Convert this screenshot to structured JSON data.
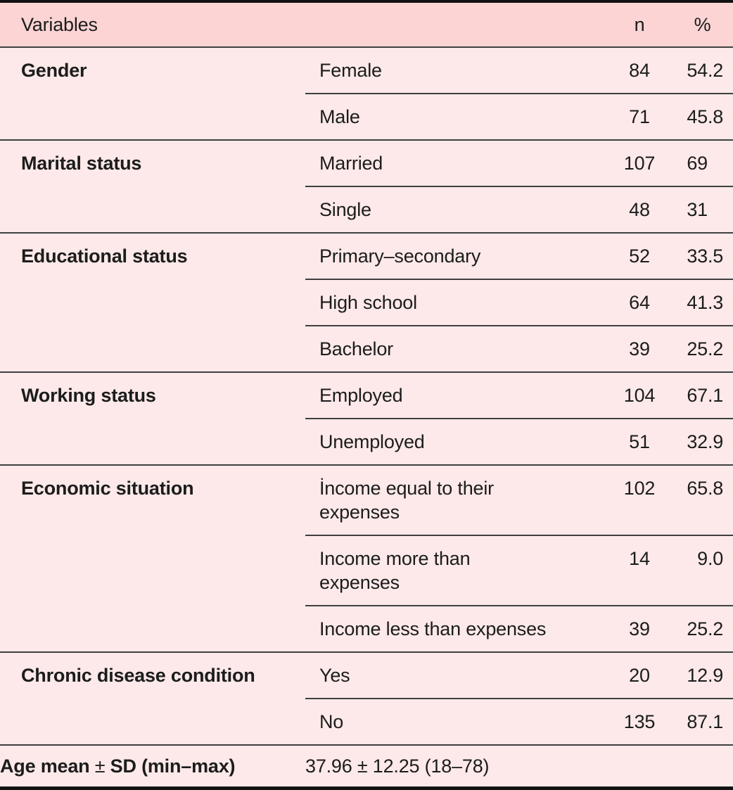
{
  "table": {
    "header": {
      "variables": "Variables",
      "n": "n",
      "percent": "%"
    },
    "groups": [
      {
        "label": "Gender",
        "rows": [
          {
            "category": "Female",
            "n": "84",
            "pct": {
              "int": "54",
              "frac": ".2"
            }
          },
          {
            "category": "Male",
            "n": "71",
            "pct": {
              "int": "45",
              "frac": ".8"
            }
          }
        ]
      },
      {
        "label": "Marital status",
        "rows": [
          {
            "category": "Married",
            "n": "107",
            "pct": {
              "int": "69",
              "frac": ""
            }
          },
          {
            "category": "Single",
            "n": "48",
            "pct": {
              "int": "31",
              "frac": ""
            }
          }
        ]
      },
      {
        "label": "Educational status",
        "rows": [
          {
            "category": "Primary–secondary",
            "n": "52",
            "pct": {
              "int": "33",
              "frac": ".5"
            }
          },
          {
            "category": "High school",
            "n": "64",
            "pct": {
              "int": "41",
              "frac": ".3"
            }
          },
          {
            "category": "Bachelor",
            "n": "39",
            "pct": {
              "int": "25",
              "frac": ".2"
            }
          }
        ]
      },
      {
        "label": "Working status",
        "rows": [
          {
            "category": "Employed",
            "n": "104",
            "pct": {
              "int": "67",
              "frac": ".1"
            }
          },
          {
            "category": "Unemployed",
            "n": "51",
            "pct": {
              "int": "32",
              "frac": ".9"
            }
          }
        ]
      },
      {
        "label": "Economic situation",
        "rows": [
          {
            "category": "İncome equal to their\nexpenses",
            "n": "102",
            "pct": {
              "int": "65",
              "frac": ".8"
            }
          },
          {
            "category": "Income more than\nexpenses",
            "n": "14",
            "pct": {
              "int": "9",
              "frac": ".0"
            }
          },
          {
            "category": "Income less than expenses",
            "n": "39",
            "pct": {
              "int": "25",
              "frac": ".2"
            }
          }
        ]
      },
      {
        "label": "Chronic disease condition",
        "rows": [
          {
            "category": "Yes",
            "n": "20",
            "pct": {
              "int": "12",
              "frac": ".9"
            }
          },
          {
            "category": "No",
            "n": "135",
            "pct": {
              "int": "87",
              "frac": ".1"
            }
          }
        ]
      }
    ],
    "summary": {
      "label_prefix": "Age mean ",
      "label_pm": "±",
      "label_suffix": " SD (min–max)",
      "value": "37.96 ± 12.25 (18–78)"
    },
    "colors": {
      "header_bg": "#fcd4d4",
      "body_bg": "#fde9e9",
      "rule": "#3f3f3f",
      "frame": "#121212"
    }
  }
}
